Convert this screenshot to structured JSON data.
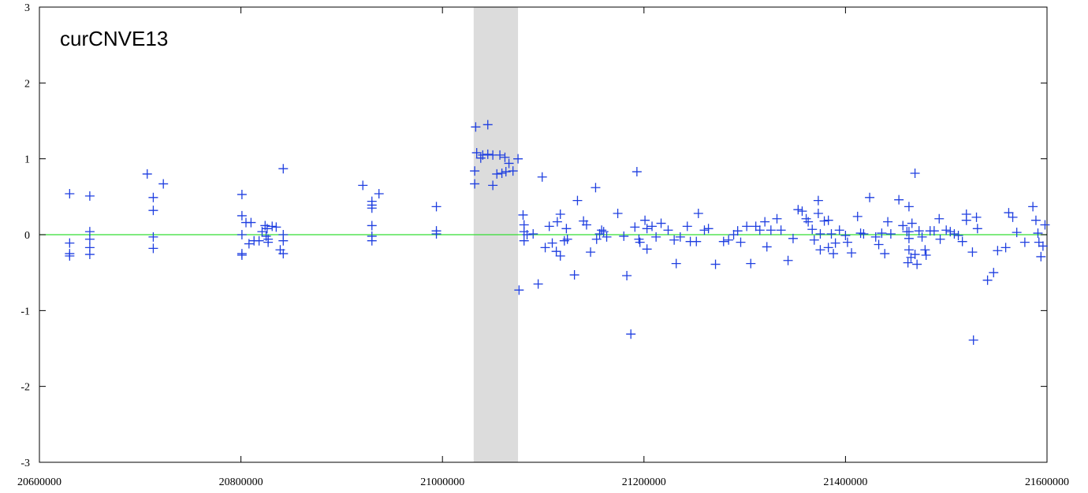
{
  "chart_data": {
    "type": "scatter",
    "title": "curCNVE13",
    "color": "#1f3fe0",
    "marker": "plus",
    "shaded_region": [
      21031000,
      21075000
    ],
    "shaded_color": "#dcdcdc",
    "reference_line": 0,
    "reference_color": "#33dd33",
    "xlim": [
      20600000,
      21600000
    ],
    "xticks": [
      20600000,
      20800000,
      21000000,
      21200000,
      21400000,
      21600000
    ],
    "ylim": [
      -3,
      3
    ],
    "yticks": [
      -3,
      -2,
      -1,
      0,
      1,
      2,
      3
    ],
    "grid": false,
    "x": [
      20630000,
      20630000,
      20630000,
      20630000,
      20650000,
      20650000,
      20650000,
      20650000,
      20650000,
      20707000,
      20713000,
      20713000,
      20713000,
      20713000,
      20723000,
      20801000,
      20801000,
      20801000,
      20801000,
      20801000,
      20805000,
      20810000,
      20808000,
      20813000,
      20818000,
      20821000,
      20824000,
      20826000,
      20827000,
      20827000,
      20831000,
      20835000,
      20839000,
      20842000,
      20842000,
      20842000,
      20842000,
      20825000,
      20921000,
      20930000,
      20930000,
      20930000,
      20930000,
      20930000,
      20930000,
      20937000,
      20994000,
      20994000,
      20994000,
      21032000,
      21032000,
      21033000,
      21034000,
      21038000,
      21040000,
      21045000,
      21045000,
      21050000,
      21050000,
      21054000,
      21057000,
      21059000,
      21062000,
      21063000,
      21066000,
      21070000,
      21075000,
      21076000,
      21080000,
      21081000,
      21081000,
      21081000,
      21084000,
      21090000,
      21095000,
      21099000,
      21102000,
      21106000,
      21109000,
      21113000,
      21114000,
      21117000,
      21117000,
      21121000,
      21123000,
      21124000,
      21131000,
      21134000,
      21140000,
      21143000,
      21147000,
      21152000,
      21153000,
      21156000,
      21158000,
      21160000,
      21163000,
      21174000,
      21180000,
      21183000,
      21187000,
      21191000,
      21193000,
      21195000,
      21196000,
      21201000,
      21203000,
      21203000,
      21208000,
      21212000,
      21217000,
      21224000,
      21230000,
      21232000,
      21236000,
      21243000,
      21246000,
      21252000,
      21254000,
      21260000,
      21264000,
      21271000,
      21279000,
      21284000,
      21289000,
      21293000,
      21296000,
      21302000,
      21306000,
      21311000,
      21315000,
      21320000,
      21322000,
      21326000,
      21332000,
      21336000,
      21343000,
      21348000,
      21353000,
      21357000,
      21361000,
      21363000,
      21367000,
      21369000,
      21373000,
      21373000,
      21375000,
      21375000,
      21379000,
      21383000,
      21383000,
      21386000,
      21388000,
      21390000,
      21394000,
      21400000,
      21402000,
      21406000,
      21412000,
      21415000,
      21418000,
      21424000,
      21430000,
      21433000,
      21436000,
      21439000,
      21442000,
      21445000,
      21453000,
      21457000,
      21461000,
      21462000,
      21463000,
      21463000,
      21463000,
      21463000,
      21465000,
      21466000,
      21469000,
      21469000,
      21471000,
      21473000,
      21476000,
      21479000,
      21480000,
      21484000,
      21488000,
      21493000,
      21494000,
      21500000,
      21504000,
      21508000,
      21512000,
      21516000,
      21520000,
      21520000,
      21526000,
      21527000,
      21530000,
      21531000,
      21541000,
      21547000,
      21551000,
      21559000,
      21562000,
      21566000,
      21570000,
      21578000,
      21586000,
      21589000,
      21591000,
      21592000,
      21594000,
      21596000,
      21598000
    ],
    "values": [
      0.54,
      -0.11,
      -0.25,
      -0.28,
      0.51,
      0.04,
      -0.06,
      -0.17,
      -0.26,
      0.8,
      0.49,
      0.32,
      -0.03,
      -0.18,
      0.67,
      0.53,
      0.25,
      0,
      -0.25,
      -0.27,
      0.16,
      0.16,
      -0.12,
      -0.08,
      -0.08,
      0.04,
      0.12,
      0.08,
      -0.06,
      -0.1,
      0.11,
      0.1,
      -0.2,
      0.87,
      0,
      -0.08,
      -0.25,
      -0.02,
      0.65,
      0.44,
      0.39,
      0.35,
      0.12,
      -0.02,
      -0.08,
      0.54,
      0.37,
      0.05,
      0.01,
      0.84,
      0.67,
      1.42,
      1.08,
      1.01,
      1.05,
      1.45,
      1.06,
      1.05,
      0.65,
      0.8,
      1.05,
      0.81,
      1.02,
      0.83,
      0.94,
      0.84,
      1.0,
      -0.73,
      0.26,
      0.13,
      0.04,
      -0.08,
      0,
      0.01,
      -0.65,
      0.76,
      -0.17,
      0.11,
      -0.11,
      -0.22,
      0.17,
      0.27,
      -0.28,
      -0.08,
      0.08,
      -0.06,
      -0.53,
      0.45,
      0.18,
      0.13,
      -0.23,
      0.62,
      -0.06,
      0.01,
      0.06,
      0.04,
      -0.03,
      0.28,
      -0.02,
      -0.54,
      -1.31,
      0.1,
      0.83,
      -0.06,
      -0.1,
      0.19,
      0.08,
      -0.19,
      0.11,
      -0.03,
      0.15,
      0.06,
      -0.07,
      -0.38,
      -0.03,
      0.11,
      -0.09,
      -0.09,
      0.28,
      0.06,
      0.08,
      -0.39,
      -0.09,
      -0.07,
      0,
      0.05,
      -0.1,
      0.11,
      -0.38,
      0.11,
      0.06,
      0.17,
      -0.16,
      0.06,
      0.21,
      0.06,
      -0.34,
      -0.05,
      0.33,
      0.31,
      0.21,
      0.17,
      0.07,
      -0.07,
      0.45,
      0.28,
      0.01,
      -0.2,
      0.18,
      -0.17,
      0.19,
      0.01,
      -0.25,
      -0.11,
      0.06,
      -0.01,
      -0.1,
      -0.24,
      0.24,
      0.02,
      0.01,
      0.49,
      -0.03,
      -0.13,
      0.02,
      -0.25,
      0.17,
      0.01,
      0.46,
      0.12,
      0.04,
      -0.37,
      0.37,
      0.04,
      -0.05,
      -0.2,
      -0.3,
      0.15,
      0.81,
      -0.26,
      -0.39,
      0.05,
      -0.03,
      -0.2,
      -0.27,
      0.05,
      0.05,
      0.21,
      -0.06,
      0.06,
      0.04,
      0.01,
      -0.01,
      -0.09,
      0.27,
      0.19,
      -0.23,
      -1.39,
      0.23,
      0.08,
      -0.6,
      -0.5,
      -0.21,
      -0.17,
      0.29,
      0.23,
      0.03,
      -0.1,
      0.37,
      0.19,
      0.02,
      -0.1,
      -0.29,
      -0.15,
      0.13
    ]
  }
}
